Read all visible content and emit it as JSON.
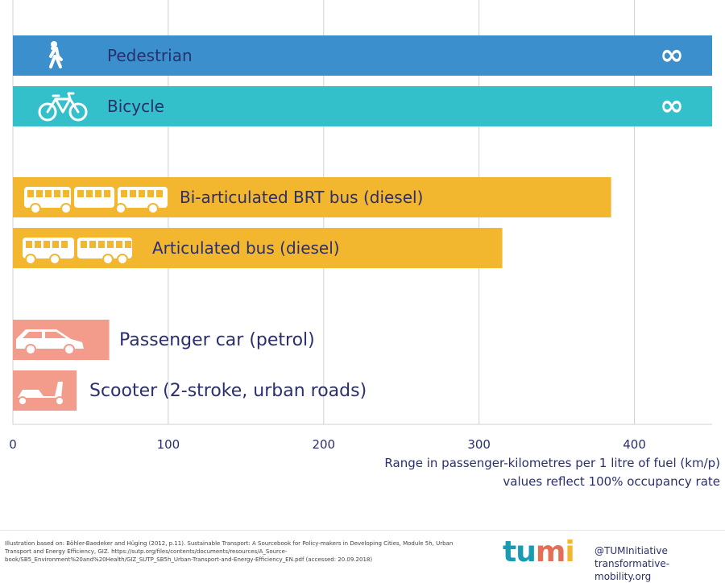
{
  "chart_data": {
    "type": "bar",
    "orientation": "horizontal",
    "categories": [
      "Pedestrian",
      "Bicycle",
      "Bi-articulated BRT bus (diesel)",
      "Articulated bus (diesel)",
      "Passenger car (petrol)",
      "Scooter  (2-stroke, urban roads)"
    ],
    "values": [
      null,
      null,
      385,
      315,
      62,
      41
    ],
    "value_labels": [
      "∞",
      "∞",
      "",
      "",
      "",
      ""
    ],
    "bar_colors": [
      "#3c8fcd",
      "#33c0cb",
      "#f2b62f",
      "#f2b62f",
      "#f49c8c",
      "#f49c8c"
    ],
    "icons": [
      "pedestrian-icon",
      "bicycle-icon",
      "brt-bus-icon",
      "articulated-bus-icon",
      "car-icon",
      "scooter-icon"
    ],
    "xlim": [
      0,
      450
    ],
    "xticks": [
      0,
      100,
      200,
      300,
      400
    ],
    "xtick_labels": [
      "0",
      "100",
      "200",
      "300",
      "400"
    ],
    "grid": true,
    "xlabel": [
      "Range in passenger-kilometres per 1 litre of fuel (km/p)",
      "values reflect 100% occupancy rate"
    ]
  },
  "footer": {
    "source_lines": [
      "Illustration based on: Böhler-Baedeker and Hüging (2012, p.11). Sustainable Transport: A Sourcebook for Policy-makers in Developing Cities, Module 5h, Urban",
      "Transport and Energy Efficiency, GIZ. https://sutp.org/files/contents/documents/resources/A_Source-",
      "book/SB5_Environment%20and%20Health/GIZ_SUTP_SB5h_Urban-Transport-and-Energy-Efficiency_EN.pdf (accessed: 20.09.2018)"
    ],
    "logo": {
      "t": "t",
      "u1": "u",
      "m": "m",
      "i": "i"
    },
    "handle": "@TUMInitiative",
    "website": "transformative-mobility.org"
  },
  "colors": {
    "text": "#2b2f6e",
    "grid": "#d0d0d0",
    "logo_t": "#1a9bb4",
    "logo_u": "#1a9bb4",
    "logo_m": "#e36f57",
    "logo_i": "#f2b62f"
  }
}
